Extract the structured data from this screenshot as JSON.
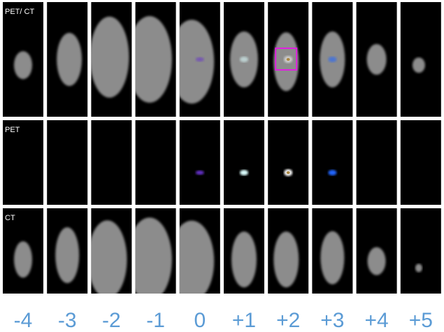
{
  "rows": [
    {
      "label": "PET/ CT"
    },
    {
      "label": "PET"
    },
    {
      "label": "CT"
    }
  ],
  "columns": [
    "-4",
    "-3",
    "-2",
    "-1",
    "0",
    "+1",
    "+2",
    "+3",
    "+4",
    "+5"
  ]
}
